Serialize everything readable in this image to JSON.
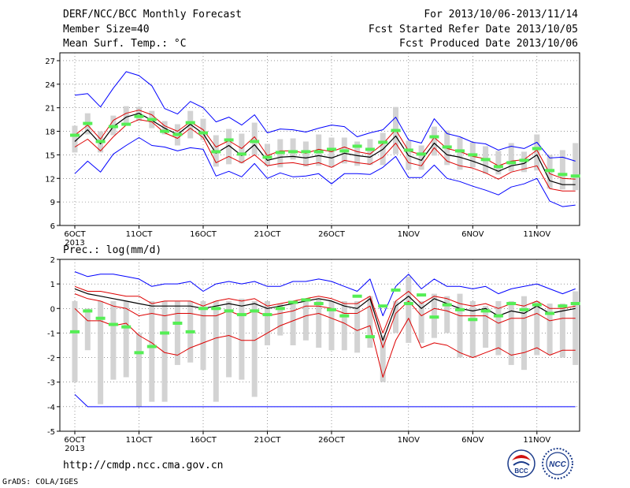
{
  "header": {
    "title": "DERF/NCC/BCC Monthly Forecast",
    "member_size": "Member Size=40",
    "variable": "Mean Surf. Temp.: °C",
    "period": "For 2013/10/06-2013/11/14",
    "started": "Fcst Started Refer Date 2013/10/05",
    "produced": "Fcst Produced Date 2013/10/06"
  },
  "lower_label": "Prec.: log(mm/d)",
  "footer": {
    "url": "http://cmdp.ncc.cma.gov.cn",
    "credit": "GrADS: COLA/IGES",
    "logo_left_text": "BCC",
    "logo_right_text": "NCC"
  },
  "colors": {
    "envelope": "#0000ff",
    "spread": "#dd0000",
    "mean": "#000000",
    "box": "#d3d3d3",
    "median_marker": "#55ee55"
  },
  "chart_data": [
    {
      "type": "line",
      "title": "Mean Surf. Temp.: °C",
      "x_ticks": [
        "6OCT",
        "11OCT",
        "16OCT",
        "21OCT",
        "26OCT",
        "1NOV",
        "6NOV",
        "11NOV"
      ],
      "x_tick_index": [
        0,
        5,
        10,
        15,
        20,
        26,
        31,
        36
      ],
      "x_year": "2013",
      "ylim": [
        6,
        28
      ],
      "y_ticks": [
        6,
        9,
        12,
        15,
        18,
        21,
        24,
        27
      ],
      "grid": true,
      "days": 40,
      "series": [
        {
          "role": "max",
          "values": [
            22.6,
            22.8,
            21.1,
            23.5,
            25.6,
            25.1,
            23.8,
            20.9,
            20.2,
            21.8,
            21.0,
            19.2,
            19.8,
            18.8,
            20.1,
            17.8,
            18.3,
            18.2,
            17.9,
            18.4,
            18.8,
            18.6,
            17.3,
            17.8,
            18.2,
            19.8,
            16.9,
            16.5,
            19.6,
            17.7,
            17.3,
            16.6,
            16.4,
            15.6,
            16.1,
            15.8,
            16.6,
            14.6,
            14.7,
            14.2
          ]
        },
        {
          "role": "spread_high",
          "values": [
            17.5,
            18.8,
            17.0,
            19.4,
            20.3,
            20.7,
            20.1,
            18.7,
            18.0,
            19.2,
            18.2,
            16.0,
            16.8,
            15.8,
            17.3,
            14.9,
            15.5,
            15.5,
            15.2,
            15.7,
            15.4,
            16.0,
            15.4,
            15.1,
            16.4,
            18.2,
            15.5,
            15.0,
            17.2,
            15.8,
            15.4,
            14.8,
            14.5,
            13.6,
            14.2,
            14.4,
            15.6,
            12.6,
            12.0,
            11.9
          ]
        },
        {
          "role": "mean",
          "values": [
            16.7,
            18.2,
            16.4,
            18.6,
            19.8,
            20.3,
            19.4,
            18.4,
            17.6,
            18.9,
            17.7,
            15.2,
            16.2,
            14.9,
            16.3,
            14.3,
            14.7,
            14.8,
            14.6,
            14.9,
            14.6,
            15.2,
            14.9,
            14.7,
            15.7,
            17.4,
            14.9,
            14.3,
            16.5,
            15.0,
            14.7,
            14.2,
            13.6,
            12.9,
            13.6,
            13.9,
            15.0,
            11.7,
            11.2,
            11.2
          ]
        },
        {
          "role": "spread_low",
          "values": [
            16.0,
            17.0,
            15.5,
            17.3,
            18.8,
            19.5,
            19.2,
            17.8,
            17.1,
            18.4,
            17.2,
            14.0,
            14.8,
            14.0,
            15.0,
            13.6,
            13.9,
            14.0,
            13.7,
            14.0,
            13.4,
            14.3,
            14.0,
            13.8,
            14.7,
            16.5,
            14.0,
            13.6,
            15.9,
            14.2,
            13.6,
            13.3,
            12.7,
            11.9,
            12.8,
            13.2,
            13.6,
            10.7,
            10.4,
            10.4
          ]
        },
        {
          "role": "min",
          "values": [
            12.6,
            14.2,
            12.8,
            15.1,
            16.2,
            17.2,
            16.2,
            16.0,
            15.5,
            15.9,
            15.7,
            12.3,
            12.9,
            12.2,
            13.9,
            12.0,
            12.7,
            12.2,
            12.3,
            12.6,
            11.3,
            12.6,
            12.6,
            12.5,
            13.4,
            14.8,
            12.1,
            12.1,
            13.7,
            12.0,
            11.6,
            11.0,
            10.5,
            9.9,
            10.9,
            11.3,
            12.0,
            9.1,
            8.4,
            8.6
          ]
        },
        {
          "role": "box_high",
          "values": [
            18.7,
            20.3,
            18.0,
            20.0,
            21.2,
            21.1,
            20.6,
            19.3,
            18.9,
            20.6,
            19.6,
            17.5,
            18.3,
            17.7,
            19.1,
            16.4,
            17.0,
            17.1,
            16.7,
            17.6,
            17.2,
            17.2,
            16.7,
            17.0,
            17.8,
            21.1,
            16.8,
            16.2,
            18.6,
            18.1,
            17.2,
            16.6,
            16.1,
            15.5,
            16.5,
            15.4,
            17.6,
            15.0,
            15.6,
            16.5
          ]
        },
        {
          "role": "box_low",
          "values": [
            15.3,
            17.6,
            15.3,
            17.5,
            18.7,
            19.3,
            18.4,
            17.6,
            16.2,
            17.1,
            16.9,
            13.5,
            13.8,
            13.9,
            14.9,
            13.6,
            13.4,
            14.4,
            13.5,
            13.6,
            13.4,
            13.9,
            13.6,
            13.7,
            13.7,
            15.1,
            13.1,
            13.1,
            14.9,
            13.7,
            13.1,
            13.4,
            12.6,
            12.5,
            12.9,
            12.8,
            13.0,
            10.7,
            10.6,
            10.5
          ]
        },
        {
          "role": "median",
          "values": [
            17.5,
            19.0,
            16.7,
            18.6,
            18.9,
            19.9,
            19.5,
            18.0,
            17.6,
            19.1,
            17.8,
            15.4,
            16.9,
            15.1,
            16.7,
            14.7,
            15.3,
            15.4,
            15.4,
            15.4,
            15.7,
            15.5,
            16.1,
            15.7,
            16.6,
            18.1,
            15.6,
            15.1,
            17.3,
            16.0,
            15.5,
            15.0,
            14.4,
            13.5,
            14.0,
            14.3,
            15.8,
            13.0,
            12.5,
            12.3
          ]
        }
      ]
    },
    {
      "type": "line",
      "title": "Prec.: log(mm/d)",
      "x_ticks": [
        "6OCT",
        "11OCT",
        "16OCT",
        "21OCT",
        "26OCT",
        "1NOV",
        "6NOV",
        "11NOV"
      ],
      "x_tick_index": [
        0,
        5,
        10,
        15,
        20,
        26,
        31,
        36
      ],
      "x_year": "2013",
      "ylim": [
        -5,
        2
      ],
      "y_ticks": [
        -5,
        -4,
        -3,
        -2,
        -1,
        0,
        1,
        2
      ],
      "grid": true,
      "days": 40,
      "series": [
        {
          "role": "max",
          "values": [
            1.5,
            1.3,
            1.4,
            1.4,
            1.3,
            1.2,
            0.9,
            1.0,
            1.0,
            1.1,
            0.7,
            1.0,
            1.1,
            1.0,
            1.1,
            0.9,
            0.9,
            1.1,
            1.1,
            1.2,
            1.1,
            0.9,
            0.7,
            1.2,
            -0.3,
            0.9,
            1.4,
            0.8,
            1.2,
            0.9,
            0.9,
            0.8,
            0.9,
            0.6,
            0.8,
            0.9,
            1.0,
            0.8,
            0.6,
            0.8
          ]
        },
        {
          "role": "spread_high",
          "values": [
            0.9,
            0.7,
            0.7,
            0.6,
            0.5,
            0.5,
            0.2,
            0.3,
            0.3,
            0.3,
            0.1,
            0.3,
            0.4,
            0.3,
            0.4,
            0.1,
            0.2,
            0.3,
            0.4,
            0.5,
            0.4,
            0.2,
            0.2,
            0.5,
            -1.0,
            0.3,
            0.7,
            0.2,
            0.5,
            0.4,
            0.2,
            0.1,
            0.2,
            0.0,
            0.2,
            0.1,
            0.3,
            0.0,
            0.0,
            0.1
          ]
        },
        {
          "role": "mean",
          "values": [
            0.8,
            0.6,
            0.5,
            0.4,
            0.3,
            0.2,
            0.1,
            0.1,
            0.1,
            0.1,
            0.0,
            0.1,
            0.2,
            0.1,
            0.2,
            0.0,
            0.1,
            0.2,
            0.3,
            0.4,
            0.3,
            0.1,
            0.0,
            0.4,
            -1.3,
            0.1,
            0.5,
            0.0,
            0.4,
            0.2,
            0.0,
            -0.1,
            0.0,
            -0.3,
            -0.1,
            -0.2,
            0.1,
            -0.2,
            -0.1,
            0.0
          ]
        },
        {
          "role": "spread_low",
          "values": [
            0.6,
            0.4,
            0.3,
            0.1,
            0.0,
            -0.3,
            -0.2,
            -0.3,
            -0.2,
            -0.2,
            -0.3,
            -0.3,
            -0.1,
            -0.3,
            -0.1,
            -0.3,
            -0.2,
            -0.1,
            0.1,
            0.1,
            0.0,
            -0.2,
            -0.2,
            0.1,
            -1.6,
            -0.2,
            0.3,
            -0.3,
            0.0,
            -0.1,
            -0.3,
            -0.3,
            -0.3,
            -0.6,
            -0.4,
            -0.4,
            -0.2,
            -0.5,
            -0.4,
            -0.4
          ]
        },
        {
          "role": "min",
          "values": [
            -3.5,
            -4.0,
            -4.0,
            -4.0,
            -4.0,
            -4.0,
            -4.0,
            -4.0,
            -4.0,
            -4.0,
            -4.0,
            -4.0,
            -4.0,
            -4.0,
            -4.0,
            -4.0,
            -4.0,
            -4.0,
            -4.0,
            -4.0,
            -4.0,
            -4.0,
            -4.0,
            -4.0,
            -4.0,
            -4.0,
            -4.0,
            -4.0,
            -4.0,
            -4.0,
            -4.0,
            -4.0,
            -4.0,
            -4.0,
            -4.0,
            -4.0,
            -4.0,
            -4.0,
            -4.0,
            -4.0
          ]
        },
        {
          "role": "lower_red",
          "values": [
            0.0,
            -0.5,
            -0.5,
            -0.7,
            -0.6,
            -1.1,
            -1.4,
            -1.8,
            -1.9,
            -1.6,
            -1.4,
            -1.2,
            -1.1,
            -1.3,
            -1.3,
            -1.0,
            -0.7,
            -0.5,
            -0.3,
            -0.2,
            -0.4,
            -0.6,
            -0.9,
            -0.7,
            -2.8,
            -1.3,
            -0.4,
            -1.6,
            -1.4,
            -1.5,
            -1.8,
            -2.0,
            -1.8,
            -1.6,
            -1.9,
            -1.8,
            -1.6,
            -1.9,
            -1.7,
            -1.7
          ]
        },
        {
          "role": "box_high",
          "values": [
            0.3,
            0.0,
            0.3,
            0.3,
            0.3,
            -1.0,
            0.3,
            0.3,
            0.3,
            0.3,
            0.3,
            0.3,
            0.3,
            0.4,
            0.3,
            0.3,
            0.2,
            0.3,
            0.3,
            0.4,
            0.3,
            0.3,
            0.3,
            0.5,
            -1.1,
            0.3,
            1.3,
            0.3,
            0.6,
            0.5,
            0.6,
            0.3,
            0.1,
            0.3,
            0.3,
            0.5,
            0.3,
            0.2,
            0.2,
            0.7
          ]
        },
        {
          "role": "box_low",
          "values": [
            -3.0,
            -1.7,
            -3.9,
            -2.9,
            -2.8,
            -4.0,
            -3.8,
            -3.8,
            -2.3,
            -2.2,
            -2.5,
            -3.8,
            -2.8,
            -2.9,
            -3.6,
            -1.5,
            -1.1,
            -1.5,
            -1.3,
            -1.6,
            -1.7,
            -1.7,
            -1.8,
            -1.6,
            -3.0,
            -1.0,
            -1.4,
            -1.4,
            -1.2,
            -1.0,
            -2.0,
            -2.0,
            -1.6,
            -1.9,
            -2.3,
            -2.5,
            -1.9,
            -1.9,
            -2.0,
            -2.3
          ]
        },
        {
          "role": "median",
          "values": [
            -0.95,
            -0.1,
            -0.4,
            -0.65,
            -0.75,
            -1.8,
            -1.55,
            -1.0,
            -0.6,
            -0.95,
            0.0,
            0.0,
            -0.1,
            -0.25,
            -0.1,
            -0.25,
            0.0,
            0.25,
            0.35,
            0.2,
            -0.05,
            -0.3,
            0.5,
            -1.15,
            0.1,
            0.75,
            0.2,
            0.55,
            -0.35,
            0.15,
            -0.05,
            -0.45,
            -0.1,
            -0.3,
            0.2,
            -0.05,
            0.15,
            -0.2,
            0.1,
            0.2
          ]
        }
      ]
    }
  ]
}
